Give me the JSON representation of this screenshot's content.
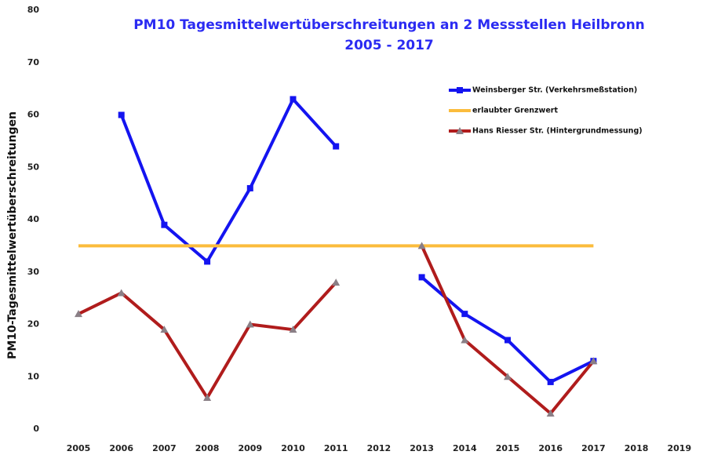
{
  "chart_data": {
    "type": "line",
    "title": [
      "PM10 Tagesmittelwertüberschreitungen an 2 Messstellen Heilbronn",
      "2005 - 2017"
    ],
    "ylabel": "PM10-Tagesmittelwertüberschreitungen",
    "categories": [
      "2005",
      "2006",
      "2007",
      "2008",
      "2009",
      "2010",
      "2011",
      "2012",
      "2013",
      "2014",
      "2015",
      "2016",
      "2017",
      "2018",
      "2019"
    ],
    "series": [
      {
        "name": "Weinsberger Str. (Verkehrsmeßstation)",
        "color": "#1414f0",
        "marker": "square",
        "values": [
          null,
          60,
          39,
          32,
          46,
          63,
          54,
          null,
          29,
          22,
          17,
          9,
          13,
          null,
          null
        ]
      },
      {
        "name": "erlaubter Grenzwert",
        "color": "#fbbc3c",
        "marker": "none",
        "values": [
          35,
          35,
          35,
          35,
          35,
          35,
          35,
          35,
          35,
          35,
          35,
          35,
          35,
          null,
          null
        ]
      },
      {
        "name": "Hans Riesser Str. (Hintergrundmessung)",
        "color": "#b01c1c",
        "marker": "triangle",
        "values": [
          22,
          26,
          19,
          6,
          20,
          19,
          28,
          null,
          35,
          17,
          10,
          3,
          13,
          null,
          null
        ]
      }
    ],
    "ylim": [
      0,
      80
    ],
    "yticks": [
      0,
      10,
      20,
      30,
      40,
      50,
      60,
      70,
      80
    ],
    "grid": false,
    "legend": "upper right"
  }
}
